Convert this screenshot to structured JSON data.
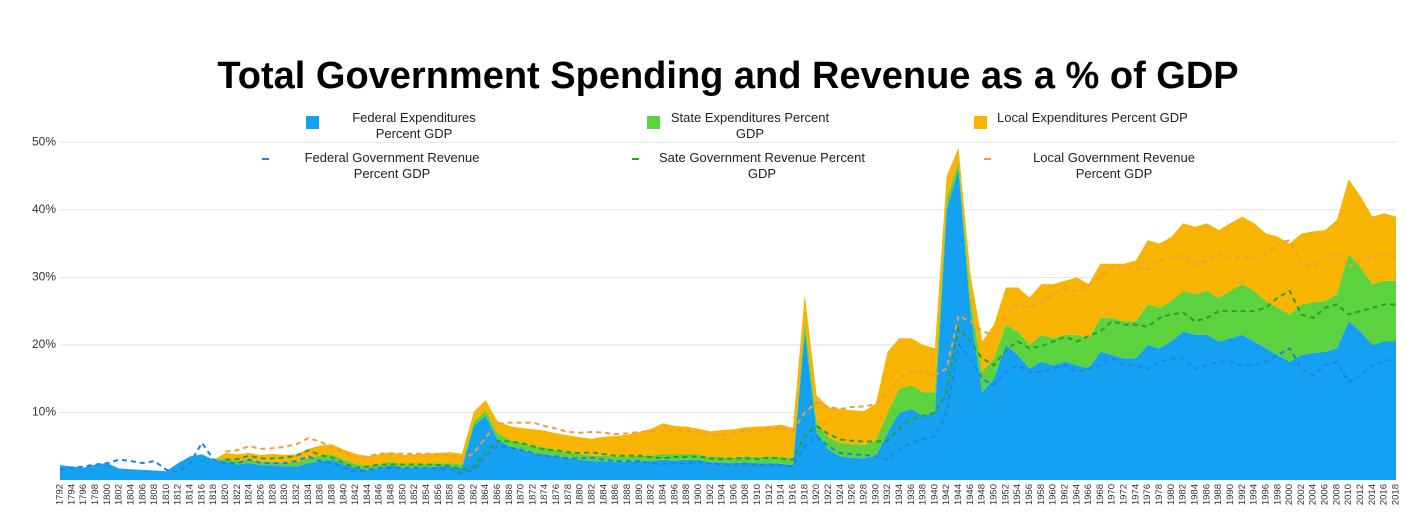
{
  "chart_data": {
    "type": "stacked-area-line",
    "title": "Total Government Spending and Revenue as a % of GDP",
    "categories": [
      "1792",
      "1794",
      "1796",
      "1798",
      "1800",
      "1802",
      "1804",
      "1806",
      "1808",
      "1810",
      "1812",
      "1814",
      "1816",
      "1818",
      "1820",
      "1822",
      "1824",
      "1826",
      "1828",
      "1830",
      "1832",
      "1834",
      "1836",
      "1838",
      "1840",
      "1842",
      "1844",
      "1846",
      "1848",
      "1850",
      "1852",
      "1854",
      "1856",
      "1858",
      "1860",
      "1862",
      "1864",
      "1866",
      "1868",
      "1870",
      "1872",
      "1874",
      "1876",
      "1878",
      "1880",
      "1882",
      "1884",
      "1886",
      "1888",
      "1890",
      "1892",
      "1894",
      "1896",
      "1898",
      "1900",
      "1902",
      "1904",
      "1906",
      "1908",
      "1910",
      "1912",
      "1914",
      "1916",
      "1918",
      "1920",
      "1922",
      "1924",
      "1926",
      "1928",
      "1930",
      "1932",
      "1934",
      "1936",
      "1938",
      "1940",
      "1942",
      "1944",
      "1946",
      "1948",
      "1950",
      "1952",
      "1954",
      "1956",
      "1958",
      "1960",
      "1962",
      "1964",
      "1966",
      "1968",
      "1970",
      "1972",
      "1974",
      "1976",
      "1978",
      "1980",
      "1982",
      "1984",
      "1986",
      "1988",
      "1990",
      "1992",
      "1994",
      "1996",
      "1998",
      "2000",
      "2002",
      "2004",
      "2006",
      "2008",
      "2010",
      "2012",
      "2014",
      "2016",
      "2018"
    ],
    "series": [
      {
        "name": "Federal Expenditures Percent GDP",
        "kind": "area",
        "color": "#14a1f2",
        "values": [
          2.2,
          2.0,
          1.8,
          2.3,
          2.5,
          1.7,
          1.6,
          1.5,
          1.4,
          1.3,
          2.5,
          3.5,
          3.8,
          3.0,
          2.8,
          2.3,
          2.5,
          2.2,
          2.2,
          2.0,
          2.0,
          2.5,
          2.8,
          3.0,
          2.3,
          1.8,
          1.5,
          1.8,
          2.2,
          1.8,
          1.8,
          1.9,
          2.0,
          2.0,
          1.8,
          8.0,
          9.5,
          6.0,
          5.0,
          4.5,
          4.0,
          3.8,
          3.5,
          3.2,
          3.0,
          2.8,
          2.8,
          2.7,
          2.7,
          2.8,
          2.8,
          3.0,
          2.9,
          3.0,
          3.0,
          2.6,
          2.6,
          2.5,
          2.6,
          2.5,
          2.5,
          2.4,
          2.2,
          22,
          7.0,
          4.5,
          3.5,
          3.3,
          3.2,
          3.6,
          7.0,
          10,
          10.5,
          9.5,
          10,
          40,
          46,
          25,
          13,
          15,
          20,
          18.5,
          16.5,
          17.5,
          17,
          17.5,
          17,
          16.5,
          19,
          18.5,
          18,
          18,
          20,
          19.5,
          20.5,
          22,
          21.5,
          21.5,
          20.5,
          21,
          21.5,
          20.5,
          19.5,
          18.5,
          17.5,
          18.5,
          18.8,
          19,
          19.5,
          23.5,
          22,
          20,
          20.5,
          20.5
        ]
      },
      {
        "name": "State Expenditures Percent GDP",
        "kind": "area",
        "color": "#5dd23f",
        "values": [
          0,
          0,
          0,
          0,
          0,
          0,
          0,
          0,
          0,
          0,
          0,
          0,
          0,
          0,
          0.4,
          0.5,
          0.5,
          0.5,
          0.5,
          0.5,
          0.6,
          0.8,
          0.8,
          0.8,
          0.7,
          0.6,
          0.5,
          0.5,
          0.5,
          0.5,
          0.5,
          0.5,
          0.5,
          0.5,
          0.5,
          0.6,
          0.8,
          0.9,
          1.0,
          1.0,
          1.0,
          1.0,
          0.9,
          0.9,
          0.8,
          0.8,
          0.8,
          0.8,
          0.8,
          0.8,
          0.8,
          0.9,
          0.9,
          0.9,
          0.8,
          0.8,
          0.8,
          0.8,
          0.9,
          0.9,
          1.0,
          1.0,
          1.0,
          1.5,
          1.5,
          1.8,
          2.0,
          2.0,
          2.0,
          2.2,
          3.0,
          3.5,
          3.5,
          3.5,
          3.0,
          1.5,
          1.2,
          2.0,
          3.0,
          3.0,
          3.0,
          3.5,
          3.5,
          4.0,
          4.0,
          4.0,
          4.5,
          4.5,
          5.0,
          5.5,
          5.5,
          5.5,
          6.0,
          6.0,
          6.0,
          6.0,
          6.0,
          6.5,
          6.5,
          7.0,
          7.5,
          7.5,
          7.0,
          7.0,
          7.0,
          7.5,
          7.5,
          7.5,
          8.0,
          10.0,
          9.5,
          9.0,
          9.0,
          9.0
        ]
      },
      {
        "name": "Local Expenditures Percent GDP",
        "kind": "area",
        "color": "#f7b502",
        "values": [
          0,
          0,
          0,
          0,
          0,
          0,
          0,
          0,
          0,
          0,
          0,
          0,
          0,
          0,
          0.8,
          1.0,
          1.0,
          1.0,
          1.2,
          1.2,
          1.2,
          1.3,
          1.5,
          1.5,
          1.5,
          1.5,
          1.5,
          1.5,
          1.4,
          1.4,
          1.5,
          1.5,
          1.5,
          1.6,
          1.6,
          1.5,
          1.5,
          1.8,
          2.0,
          2.2,
          2.5,
          2.5,
          2.5,
          2.5,
          2.5,
          2.5,
          2.8,
          3.0,
          3.2,
          3.5,
          4.0,
          4.5,
          4.2,
          4.0,
          3.8,
          3.8,
          4.0,
          4.2,
          4.3,
          4.5,
          4.5,
          4.8,
          4.5,
          4.0,
          4.0,
          4.5,
          5.0,
          5.0,
          5.0,
          5.5,
          9.0,
          7.5,
          7.0,
          7.0,
          6.5,
          3.5,
          2.0,
          3.5,
          4.5,
          5.0,
          5.5,
          6.5,
          7.0,
          7.5,
          8.0,
          8.0,
          8.5,
          8.0,
          8.0,
          8.0,
          8.5,
          9.0,
          9.5,
          9.5,
          9.5,
          10,
          10,
          10,
          10,
          10,
          10,
          10,
          10,
          10.5,
          10.5,
          10.5,
          10.5,
          10.5,
          11,
          11,
          10.5,
          10,
          10,
          9.5
        ]
      },
      {
        "name": "Federal Government Revenue Percent GDP",
        "kind": "line",
        "color": "#1f84e0",
        "values": [
          1.5,
          1.8,
          2.0,
          2.3,
          2.5,
          3.0,
          2.8,
          2.5,
          2.8,
          1.5,
          1.2,
          2.5,
          5.5,
          3.0,
          2.5,
          2.5,
          3.0,
          2.5,
          2.5,
          2.5,
          2.8,
          3.5,
          2.8,
          2.5,
          1.8,
          1.2,
          1.5,
          1.8,
          1.8,
          1.8,
          1.8,
          1.8,
          1.7,
          1.6,
          1.0,
          1.5,
          3.5,
          5.0,
          4.8,
          4.5,
          4.0,
          3.5,
          3.5,
          3.2,
          3.2,
          3.3,
          3.0,
          2.8,
          2.8,
          2.8,
          2.5,
          2.3,
          2.5,
          2.5,
          2.7,
          2.4,
          2.3,
          2.3,
          2.3,
          2.2,
          2.3,
          2.2,
          2.0,
          5.0,
          6.5,
          5.0,
          4.0,
          3.8,
          3.7,
          3.5,
          3.0,
          4.5,
          5.5,
          6.0,
          6.5,
          10,
          20,
          18,
          15,
          14,
          16,
          17,
          16,
          16,
          16.5,
          17,
          16,
          16.5,
          17,
          18,
          17,
          17,
          16.5,
          17.5,
          18,
          18,
          16.5,
          17,
          17.5,
          17.5,
          17,
          17,
          17.5,
          18.5,
          19.5,
          16.5,
          15.5,
          17,
          17.5,
          14.5,
          15.5,
          17,
          17.5,
          18
        ]
      },
      {
        "name": "Sate Government Revenue Percent GDP",
        "kind": "line",
        "color": "#2f9e2a",
        "values": [
          null,
          null,
          null,
          null,
          null,
          null,
          null,
          null,
          null,
          null,
          null,
          null,
          null,
          null,
          0.5,
          0.6,
          0.6,
          0.7,
          0.7,
          0.8,
          0.8,
          0.9,
          0.9,
          0.8,
          0.7,
          0.6,
          0.5,
          0.5,
          0.5,
          0.5,
          0.5,
          0.5,
          0.5,
          0.5,
          0.5,
          0.5,
          0.6,
          0.8,
          0.9,
          1.0,
          1.0,
          1.0,
          0.9,
          0.9,
          0.8,
          0.8,
          0.8,
          0.8,
          0.8,
          0.8,
          0.9,
          0.9,
          0.9,
          0.9,
          0.8,
          0.8,
          0.8,
          0.9,
          0.9,
          0.9,
          1.0,
          1.0,
          1.0,
          1.5,
          1.5,
          1.8,
          2.0,
          2.0,
          2.0,
          2.2,
          2.8,
          3.2,
          3.5,
          3.5,
          3.5,
          3.0,
          2.5,
          2.5,
          3.0,
          3.0,
          3.2,
          3.5,
          3.5,
          3.8,
          4.0,
          4.2,
          4.5,
          4.8,
          5.0,
          5.5,
          6.0,
          6.0,
          6.2,
          6.5,
          6.5,
          6.8,
          7.0,
          7.0,
          7.5,
          7.5,
          8.0,
          8.0,
          8.0,
          8.5,
          8.5,
          8.0,
          8.5,
          8.5,
          8.5,
          10,
          9.5,
          8.5,
          8.5,
          8.0
        ]
      },
      {
        "name": "Local Government Revenue Percent GDP",
        "kind": "line",
        "color": "#f59a3c",
        "values": [
          null,
          null,
          null,
          null,
          null,
          null,
          null,
          null,
          null,
          null,
          null,
          null,
          null,
          null,
          1.2,
          1.3,
          1.4,
          1.4,
          1.5,
          1.6,
          1.7,
          1.8,
          2.0,
          1.5,
          1.5,
          1.5,
          1.5,
          1.6,
          1.6,
          1.6,
          1.6,
          1.6,
          1.6,
          1.6,
          1.5,
          2.0,
          2.2,
          2.5,
          2.8,
          3.0,
          3.5,
          3.5,
          3.2,
          3.0,
          3.0,
          3.0,
          3.2,
          3.2,
          3.3,
          3.5,
          3.8,
          4.0,
          4.0,
          3.8,
          3.5,
          3.5,
          3.5,
          3.8,
          4.0,
          4.0,
          4.2,
          4.5,
          4.3,
          3.5,
          3.5,
          4.0,
          4.5,
          5.0,
          5.2,
          5.5,
          7.0,
          7.5,
          7.0,
          6.5,
          5.5,
          3.5,
          1.8,
          3.0,
          4.0,
          4.5,
          5.0,
          5.5,
          6.0,
          6.5,
          7.0,
          7.0,
          7.5,
          7.5,
          8.0,
          8.0,
          8.5,
          8.5,
          8.5,
          8.5,
          8.5,
          8.5,
          8.5,
          8.5,
          8.5,
          8.0,
          8.0,
          8.0,
          8.0,
          8.0,
          7.5,
          7.5,
          7.5,
          7.5,
          7.5,
          7.0,
          7.5,
          7.5,
          7.5,
          7.0
        ]
      }
    ],
    "stacked": true,
    "ylim": [
      0,
      53
    ],
    "yticks": [
      {
        "value": 10,
        "label": "10%"
      },
      {
        "value": 20,
        "label": "20%"
      },
      {
        "value": 30,
        "label": "30%"
      },
      {
        "value": 40,
        "label": "40%"
      },
      {
        "value": 50,
        "label": "50%"
      }
    ],
    "grid": true,
    "legend": "top"
  }
}
